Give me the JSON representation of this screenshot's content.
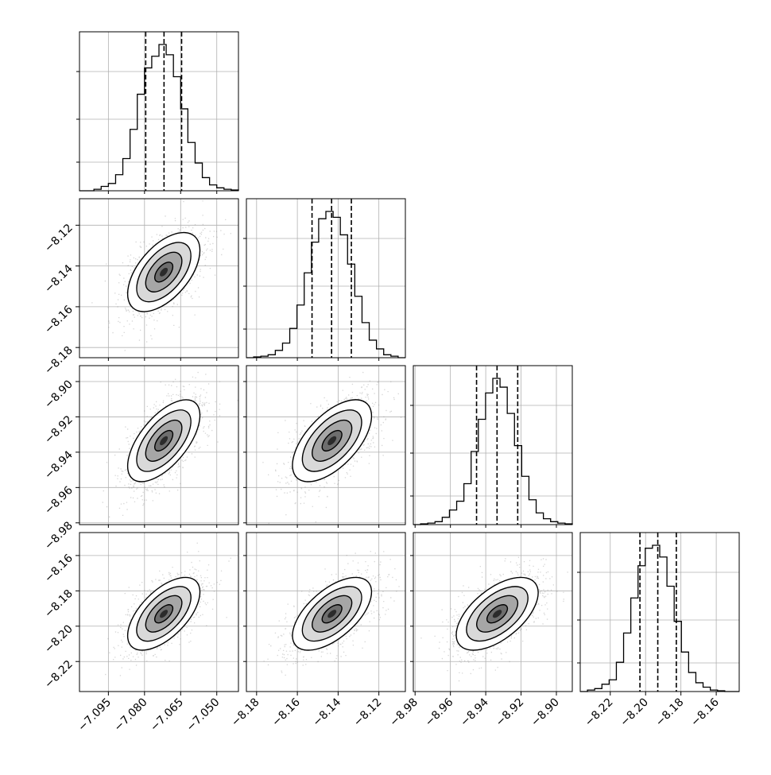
{
  "chart_data": {
    "type": "corner",
    "dimensions": 4,
    "params": [
      {
        "range": [
          -7.107,
          -7.041
        ],
        "ticks": [
          -7.095,
          -7.08,
          -7.065,
          -7.05
        ],
        "tick_labels": [
          "−7.095",
          "−7.080",
          "−7.065",
          "−7.050"
        ],
        "quantiles": [
          -7.0795,
          -7.0719,
          -7.0646
        ],
        "mean": -7.072,
        "sd": 0.0075
      },
      {
        "range": [
          -8.185,
          -8.107
        ],
        "ticks": [
          -8.18,
          -8.16,
          -8.14,
          -8.12
        ],
        "tick_labels": [
          "−8.18",
          "−8.16",
          "−8.14",
          "−8.12"
        ],
        "quantiles": [
          -8.1528,
          -8.1432,
          -8.1335
        ],
        "mean": -8.143,
        "sd": 0.0097
      },
      {
        "range": [
          -8.981,
          -8.891
        ],
        "ticks": [
          -8.98,
          -8.96,
          -8.94,
          -8.92,
          -8.9
        ],
        "tick_labels": [
          "−8.98",
          "−8.96",
          "−8.94",
          "−8.92",
          "−8.90"
        ],
        "quantiles": [
          -8.9452,
          -8.9336,
          -8.9219
        ],
        "mean": -8.9335,
        "sd": 0.0116
      },
      {
        "range": [
          -8.237,
          -8.147
        ],
        "ticks": [
          -8.22,
          -8.2,
          -8.18,
          -8.16
        ],
        "tick_labels": [
          "−8.22",
          "−8.20",
          "−8.18",
          "−8.16"
        ],
        "quantiles": [
          -8.2032,
          -8.1931,
          -8.1826
        ],
        "mean": -8.193,
        "sd": 0.0103
      }
    ],
    "histograms": [
      [
        0,
        0,
        0.01,
        0.03,
        0.05,
        0.11,
        0.22,
        0.42,
        0.66,
        0.84,
        0.92,
        1.0,
        0.93,
        0.78,
        0.56,
        0.33,
        0.19,
        0.09,
        0.04,
        0.02,
        0.01,
        0.005
      ],
      [
        0,
        0.005,
        0.01,
        0.02,
        0.05,
        0.1,
        0.2,
        0.36,
        0.58,
        0.79,
        0.95,
        1.0,
        0.96,
        0.84,
        0.64,
        0.42,
        0.24,
        0.12,
        0.06,
        0.02,
        0.01,
        0
      ],
      [
        0,
        0.005,
        0.01,
        0.02,
        0.05,
        0.1,
        0.16,
        0.28,
        0.5,
        0.72,
        0.9,
        1.0,
        0.94,
        0.76,
        0.54,
        0.33,
        0.17,
        0.08,
        0.04,
        0.02,
        0.01,
        0.005
      ],
      [
        0,
        0.01,
        0.02,
        0.05,
        0.08,
        0.2,
        0.4,
        0.64,
        0.86,
        0.98,
        1.0,
        0.92,
        0.72,
        0.48,
        0.27,
        0.13,
        0.06,
        0.03,
        0.01,
        0.005,
        0,
        0
      ]
    ],
    "correlations": [
      [
        1,
        0.55,
        0.62,
        0.6
      ],
      [
        0.55,
        1,
        0.6,
        0.6
      ],
      [
        0.62,
        0.6,
        1,
        0.58
      ],
      [
        0.6,
        0.6,
        0.58,
        1
      ]
    ],
    "contour_levels_sigma": [
      0.5,
      1.0,
      1.5,
      2.0
    ],
    "grid": true,
    "quantile_linestyle": "dashed",
    "colors": {
      "line": "#000000",
      "grid": "#b0b0b0",
      "points": "#888888"
    }
  }
}
